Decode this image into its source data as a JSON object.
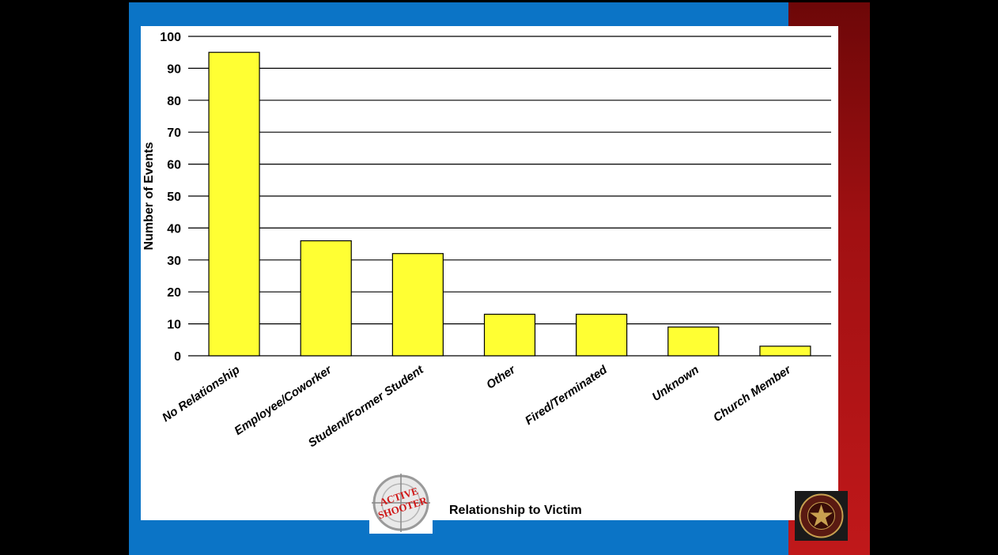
{
  "colors": {
    "bar_fill": "#ffff33",
    "slide_blue": "#0b74c6",
    "accent_red": "#b01416",
    "panel": "#ffffff"
  },
  "logos": {
    "left": {
      "icon": "active-shooter-crosshair-logo",
      "text": "ACTIVE SHOOTER"
    },
    "right": {
      "icon": "star-seal-logo"
    }
  },
  "chart_data": {
    "type": "bar",
    "categories": [
      "No Relationship",
      "Employee/Coworker",
      "Student/Former Student",
      "Other",
      "Fired/Terminated",
      "Unknown",
      "Church Member"
    ],
    "values": [
      95,
      36,
      32,
      13,
      13,
      9,
      3
    ],
    "xlabel": "Relationship to Victim",
    "ylabel": "Number of Events",
    "ylim": [
      0,
      100
    ],
    "yticks": [
      "0",
      "10",
      "20",
      "30",
      "40",
      "50",
      "60",
      "70",
      "80",
      "90",
      "100"
    ],
    "grid": true,
    "legend": "none"
  }
}
